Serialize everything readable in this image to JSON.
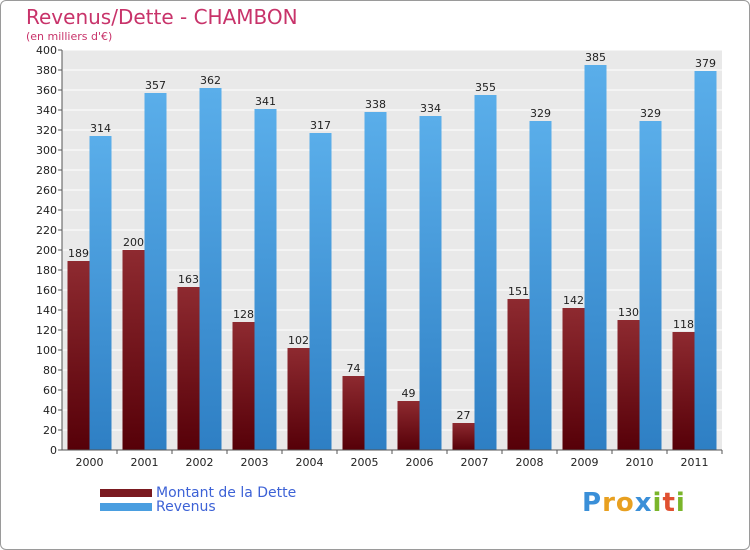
{
  "chart_data": {
    "type": "bar",
    "title": "Revenus/Dette - CHAMBON",
    "subtitle": "(en milliers d'€)",
    "categories": [
      "2000",
      "2001",
      "2002",
      "2003",
      "2004",
      "2005",
      "2006",
      "2007",
      "2008",
      "2009",
      "2010",
      "2011"
    ],
    "series": [
      {
        "name": "Montant de la Dette",
        "color": "#7a1a20",
        "values": [
          189,
          200,
          163,
          128,
          102,
          74,
          49,
          27,
          151,
          142,
          130,
          118
        ]
      },
      {
        "name": "Revenus",
        "color": "#4a9ee0",
        "values": [
          314,
          357,
          362,
          341,
          317,
          338,
          334,
          355,
          329,
          385,
          329,
          379
        ]
      }
    ],
    "ylim": [
      0,
      400
    ],
    "yticks": [
      0,
      20,
      40,
      60,
      80,
      100,
      120,
      140,
      160,
      180,
      200,
      220,
      240,
      260,
      280,
      300,
      320,
      340,
      360,
      380,
      400
    ],
    "grid": true,
    "legend_position": "bottom-left"
  },
  "logo": {
    "letters": [
      "P",
      "r",
      "o",
      "x",
      "i",
      "t",
      "i"
    ],
    "colors": [
      "#3a8fd8",
      "#e8a020",
      "#e8a020",
      "#3a8fd8",
      "#7ab52a",
      "#e05030",
      "#7ab52a"
    ]
  }
}
